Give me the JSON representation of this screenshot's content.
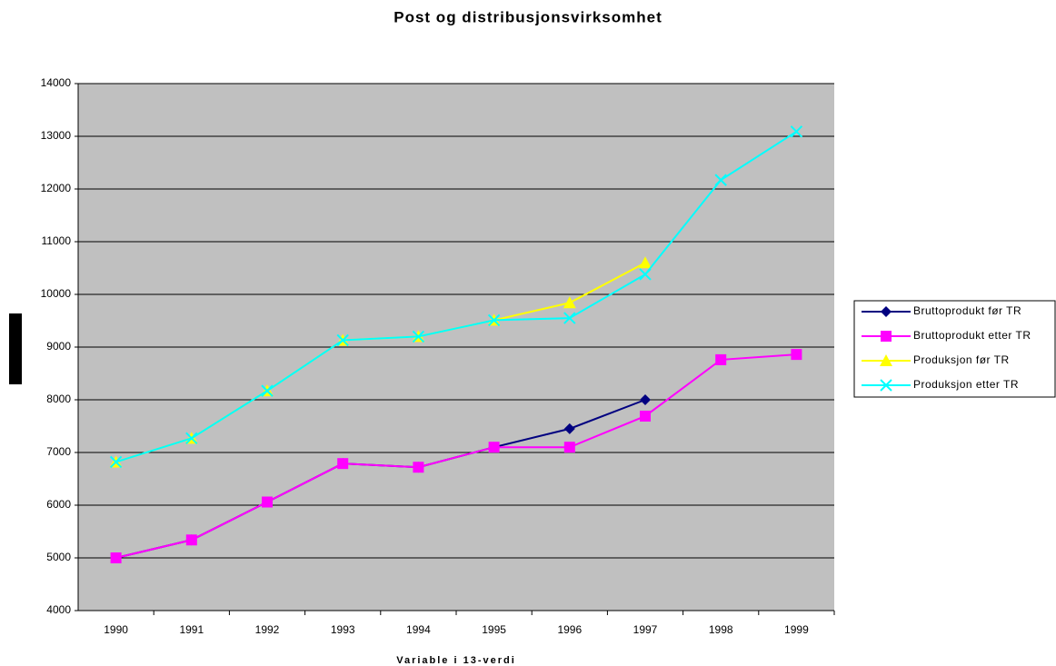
{
  "chart_data": {
    "type": "line",
    "title": "Post og distribusjonsvirksomhet",
    "x_label": "Variable i 13-verdi",
    "categories": [
      "1990",
      "1991",
      "1992",
      "1993",
      "1994",
      "1995",
      "1996",
      "1997",
      "1998",
      "1999"
    ],
    "series": [
      {
        "name": "Bruttoprodukt før TR",
        "color": "#000080",
        "marker": "diamond",
        "values": [
          5000,
          5340,
          6060,
          6790,
          6720,
          7100,
          7450,
          8000,
          null,
          null
        ]
      },
      {
        "name": "Bruttoprodukt etter TR",
        "color": "#ff00ff",
        "marker": "square",
        "values": [
          5000,
          5340,
          6060,
          6790,
          6720,
          7100,
          7100,
          7690,
          8760,
          8860
        ]
      },
      {
        "name": "Produksjon før TR",
        "color": "#ffff00",
        "marker": "triangle",
        "values": [
          6820,
          7270,
          8170,
          9130,
          9200,
          9510,
          9840,
          10600,
          null,
          null
        ]
      },
      {
        "name": "Produksjon etter TR",
        "color": "#00ffff",
        "marker": "x",
        "values": [
          6820,
          7270,
          8170,
          9130,
          9200,
          9510,
          9550,
          10380,
          12170,
          13090
        ]
      }
    ],
    "ylim": [
      4000,
      14000
    ],
    "yticks": [
      4000,
      5000,
      6000,
      7000,
      8000,
      9000,
      10000,
      11000,
      12000,
      13000,
      14000
    ],
    "grid": true
  }
}
